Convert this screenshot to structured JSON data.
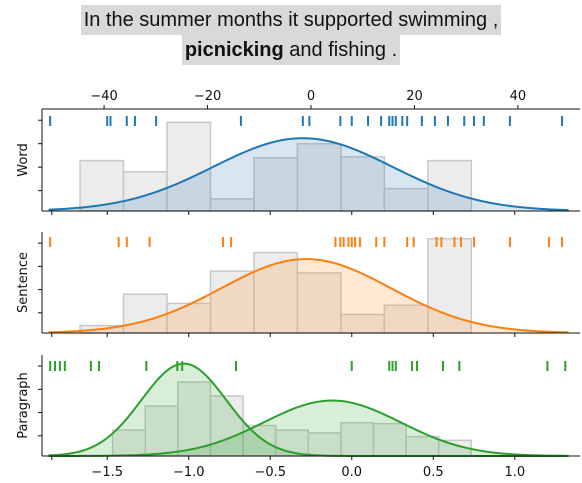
{
  "caption": {
    "pre": "In the summer months it supported swimming ,",
    "bold": "picnicking",
    "post": "and fishing ."
  },
  "colors": {
    "word": "#1f77b4",
    "sentence": "#ff7f0e",
    "paragraph": "#2ca02c",
    "hist_fill": "#e6e6e6",
    "hist_edge": "#c8c8c8"
  },
  "chart_data": [
    {
      "type": "bar",
      "panel": "word",
      "ylabel": "Word",
      "top_axis": {
        "range": [
          -52,
          52
        ],
        "ticks": [
          -40,
          -20,
          0,
          20,
          40
        ],
        "tick_labels": [
          "−40",
          "−20",
          "0",
          "20",
          "40"
        ]
      },
      "bottom_axis_ticks": [
        -1.5,
        -1.0,
        -0.5,
        0.0,
        0.5,
        1.0
      ],
      "xlim": [
        -1.9,
        1.4
      ],
      "ylim": [
        0,
        1.0
      ],
      "histogram": {
        "edges": [
          -1.6667,
          -1.4,
          -1.1333,
          -0.8667,
          -0.6,
          -0.3333,
          -0.0667,
          0.2,
          0.4667,
          0.7333
        ],
        "heights": [
          0.54,
          0.42,
          0.95,
          0.13,
          0.57,
          0.72,
          0.58,
          0.24,
          0.54
        ]
      },
      "curve": {
        "mu": -0.3,
        "sigma": 0.55,
        "peak": 0.78
      },
      "rugs": [
        -1.85,
        -1.5,
        -1.48,
        -1.38,
        -1.33,
        -1.2,
        -0.68,
        -0.3,
        -0.26,
        -0.07,
        0.0,
        0.1,
        0.18,
        0.23,
        0.25,
        0.27,
        0.31,
        0.34,
        0.43,
        0.51,
        0.59,
        0.69,
        0.75,
        0.81,
        0.97,
        1.29
      ]
    },
    {
      "type": "bar",
      "panel": "sentence",
      "ylabel": "Sentence",
      "xlim": [
        -1.9,
        1.4
      ],
      "ylim": [
        0,
        1.0
      ],
      "histogram": {
        "edges": [
          -1.6667,
          -1.4,
          -1.1333,
          -0.8667,
          -0.6,
          -0.3333,
          -0.0667,
          0.2,
          0.4667,
          0.7333
        ],
        "heights": [
          0.08,
          0.42,
          0.32,
          0.67,
          0.87,
          0.65,
          0.2,
          0.3,
          1.02
        ]
      },
      "curve": {
        "mu": -0.28,
        "sigma": 0.52,
        "peak": 0.8
      },
      "rugs": [
        -1.85,
        -1.43,
        -1.38,
        -1.24,
        -0.79,
        -0.74,
        -0.1,
        -0.07,
        -0.05,
        -0.02,
        0.0,
        0.02,
        0.05,
        0.15,
        0.2,
        0.34,
        0.38,
        0.52,
        0.55,
        0.63,
        0.67,
        0.75,
        0.97,
        1.21,
        1.29
      ]
    },
    {
      "type": "bar",
      "panel": "paragraph",
      "ylabel": "Paragraph",
      "xlim": [
        -1.9,
        1.4
      ],
      "ylim": [
        0,
        1.0
      ],
      "histogram": {
        "edges": [
          -1.4667,
          -1.2667,
          -1.0667,
          -0.8667,
          -0.6667,
          -0.4667,
          -0.2667,
          -0.0667,
          0.1333,
          0.3333,
          0.5333,
          0.7333
        ],
        "heights": [
          0.28,
          0.54,
          0.8,
          0.65,
          0.33,
          0.28,
          0.25,
          0.36,
          0.35,
          0.21,
          0.17,
          0.0
        ]
      },
      "curves": [
        {
          "mu": -1.03,
          "sigma": 0.26,
          "peak": 1.0
        },
        {
          "mu": -0.12,
          "sigma": 0.42,
          "peak": 0.6
        }
      ],
      "rugs": [
        -1.85,
        -1.82,
        -1.79,
        -1.76,
        -1.6,
        -1.55,
        -1.26,
        -1.07,
        -1.04,
        -0.71,
        0.0,
        0.23,
        0.25,
        0.27,
        0.37,
        0.4,
        0.56,
        0.66,
        1.2,
        1.31
      ],
      "bottom_axis": {
        "ticks": [
          -1.5,
          -1.0,
          -0.5,
          0.0,
          0.5,
          1.0
        ],
        "tick_labels": [
          "−1.5",
          "−1.0",
          "−0.5",
          "0.0",
          "0.5",
          "1.0"
        ]
      }
    }
  ]
}
